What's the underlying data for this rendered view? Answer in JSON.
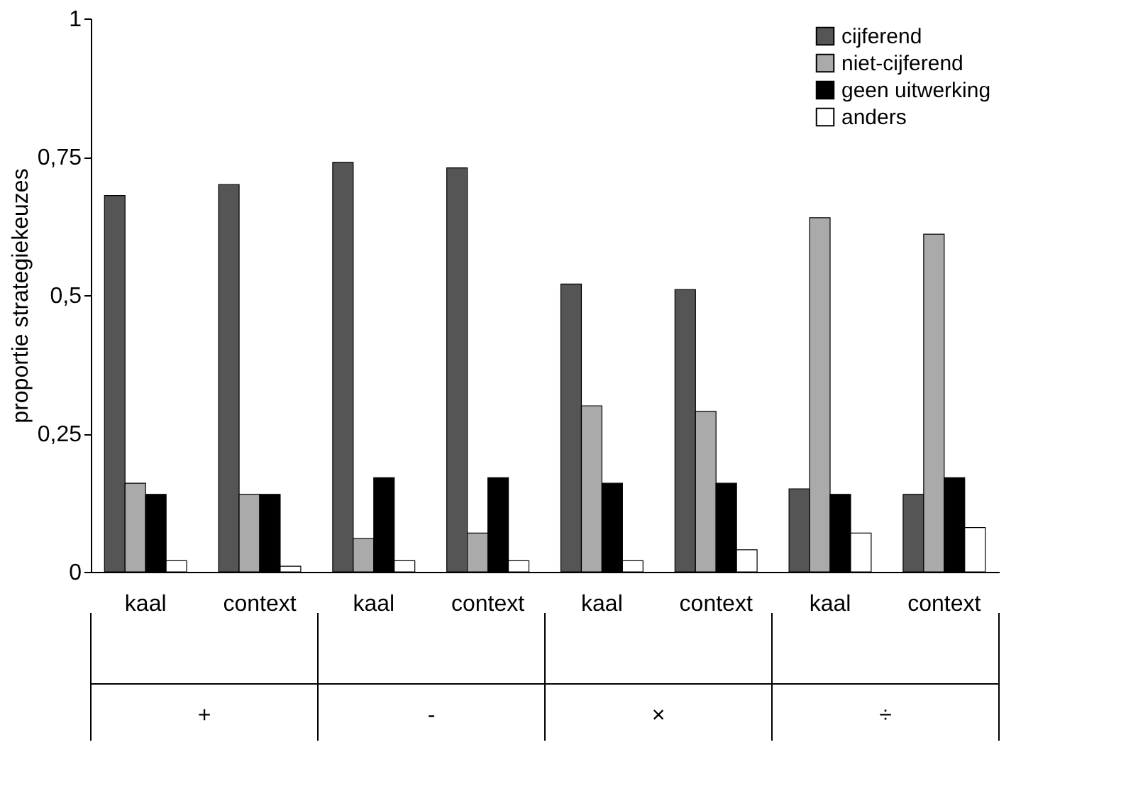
{
  "chart_data": {
    "type": "bar",
    "ylabel": "proportie strategiekeuzes",
    "categories": [
      "kaal",
      "context",
      "kaal",
      "context",
      "kaal",
      "context",
      "kaal",
      "context"
    ],
    "series": [
      {
        "name": "cijferend",
        "color": "#555555",
        "values": [
          0.68,
          0.7,
          0.74,
          0.73,
          0.52,
          0.51,
          0.15,
          0.14
        ]
      },
      {
        "name": "niet-cijferend",
        "color": "#aaaaaa",
        "values": [
          0.16,
          0.14,
          0.06,
          0.07,
          0.3,
          0.29,
          0.64,
          0.61
        ]
      },
      {
        "name": "geen uitwerking",
        "color": "#000000",
        "values": [
          0.14,
          0.14,
          0.17,
          0.17,
          0.16,
          0.16,
          0.14,
          0.17
        ]
      },
      {
        "name": "anders",
        "color": "#ffffff",
        "values": [
          0.02,
          0.01,
          0.02,
          0.02,
          0.02,
          0.04,
          0.07,
          0.08
        ]
      }
    ],
    "annotations": [
      "+",
      "-",
      "×",
      "÷"
    ],
    "ylim": [
      0,
      1
    ],
    "yticks": [
      0,
      {
        "value": 0.25,
        "label": "0,25"
      },
      {
        "value": 0.5,
        "label": "0,5"
      },
      {
        "value": 0.75,
        "label": "0,75"
      },
      1
    ],
    "grid": false,
    "legend": "top right"
  }
}
